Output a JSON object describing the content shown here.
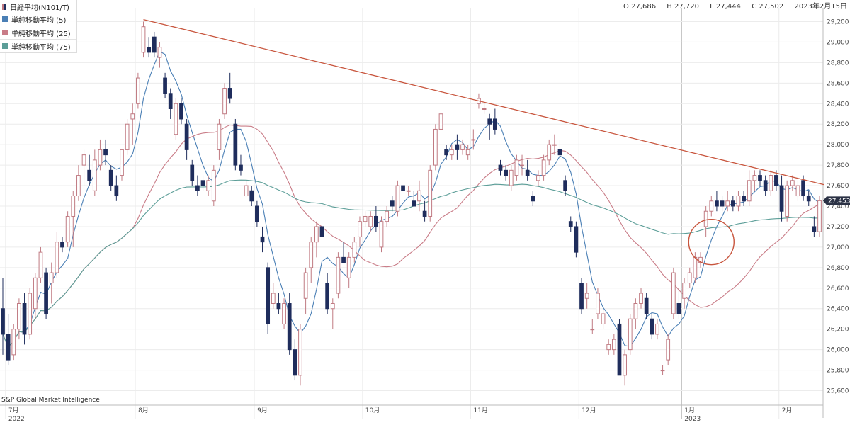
{
  "header": {
    "symbol": "日経平均(N101/T)",
    "ohlc": {
      "open": "O 27,686",
      "high": "H 27,720",
      "low": "L 27,444",
      "close": "C 27,502"
    },
    "date": "2023年2月15日"
  },
  "legend": [
    {
      "label": "単純移動平均 (5)",
      "color": "#4a7fb5"
    },
    {
      "label": "単純移動平均 (25)",
      "color": "#c97c87"
    },
    {
      "label": "単純移動平均 (75)",
      "color": "#5c9e98"
    }
  ],
  "credit": "S&P Global Market Intelligence",
  "last_price_label": "27,453",
  "colors": {
    "up": "#c07a82",
    "down": "#1f2d5c",
    "trendline": "#c8553d",
    "circle": "#c8553d",
    "grid": "#ececec"
  },
  "chart_data": {
    "type": "candlestick",
    "ylim": [
      25500,
      29300
    ],
    "y_ticks": [
      "29,200",
      "29,000",
      "28,800",
      "28,600",
      "28,400",
      "28,200",
      "28,000",
      "27,800",
      "27,600",
      "27,400",
      "27,200",
      "27,000",
      "26,800",
      "26,600",
      "26,400",
      "26,200",
      "26,000",
      "25,800",
      "25,600"
    ],
    "x_labels": [
      {
        "label": "7月",
        "sub": "2022"
      },
      {
        "label": "8月",
        "sub": ""
      },
      {
        "label": "9月",
        "sub": ""
      },
      {
        "label": "10月",
        "sub": ""
      },
      {
        "label": "11月",
        "sub": ""
      },
      {
        "label": "12月",
        "sub": ""
      },
      {
        "label": "1月",
        "sub": "2023"
      },
      {
        "label": "2月",
        "sub": ""
      }
    ],
    "candles": [
      [
        26400,
        26700,
        25950,
        26150
      ],
      [
        26150,
        26350,
        25850,
        25900
      ],
      [
        25950,
        26250,
        25900,
        26200
      ],
      [
        26200,
        26500,
        26100,
        26450
      ],
      [
        26450,
        26550,
        26050,
        26150
      ],
      [
        26150,
        26600,
        26100,
        26550
      ],
      [
        26400,
        26750,
        26300,
        26700
      ],
      [
        26700,
        27000,
        26650,
        26950
      ],
      [
        26750,
        26800,
        26300,
        26350
      ],
      [
        26650,
        26850,
        26450,
        26750
      ],
      [
        26750,
        27150,
        26700,
        27050
      ],
      [
        27050,
        27100,
        26950,
        27000
      ],
      [
        27050,
        27350,
        27000,
        27300
      ],
      [
        27300,
        27550,
        27000,
        27500
      ],
      [
        27500,
        27800,
        27450,
        27700
      ],
      [
        27800,
        27950,
        27600,
        27900
      ],
      [
        27750,
        27900,
        27600,
        27650
      ],
      [
        27550,
        27950,
        27500,
        27850
      ],
      [
        27800,
        28050,
        27750,
        27950
      ],
      [
        27950,
        28050,
        27800,
        27900
      ],
      [
        27750,
        27800,
        27550,
        27600
      ],
      [
        27600,
        27700,
        27450,
        27500
      ],
      [
        27700,
        27950,
        27650,
        27950
      ],
      [
        27950,
        28250,
        27900,
        28200
      ],
      [
        28250,
        28400,
        28000,
        28300
      ],
      [
        28400,
        28700,
        28350,
        28650
      ],
      [
        28900,
        29200,
        28850,
        29150
      ],
      [
        28950,
        29050,
        28850,
        28900
      ],
      [
        29050,
        29100,
        28850,
        28900
      ],
      [
        28850,
        29000,
        28750,
        28950
      ],
      [
        28650,
        28700,
        28450,
        28500
      ],
      [
        28500,
        28550,
        28250,
        28350
      ],
      [
        28100,
        28450,
        28050,
        28400
      ],
      [
        28400,
        28450,
        28200,
        28250
      ],
      [
        28200,
        28250,
        27850,
        27950
      ],
      [
        27800,
        27850,
        27600,
        27650
      ],
      [
        27600,
        27700,
        27500,
        27550
      ],
      [
        27650,
        27700,
        27550,
        27600
      ],
      [
        27550,
        27700,
        27500,
        27650
      ],
      [
        27450,
        27800,
        27400,
        27750
      ],
      [
        27950,
        28250,
        27850,
        28200
      ],
      [
        28300,
        28600,
        28250,
        28550
      ],
      [
        28550,
        28700,
        28400,
        28450
      ],
      [
        28200,
        28250,
        27750,
        27800
      ],
      [
        27800,
        27900,
        27700,
        27750
      ],
      [
        27500,
        27650,
        27500,
        27600
      ],
      [
        27550,
        27600,
        27400,
        27450
      ],
      [
        27400,
        27450,
        27200,
        27250
      ],
      [
        27100,
        27200,
        26950,
        27050
      ],
      [
        26800,
        26850,
        26150,
        26250
      ],
      [
        26450,
        26650,
        26400,
        26550
      ],
      [
        26450,
        26550,
        26350,
        26400
      ],
      [
        26250,
        26500,
        26200,
        26450
      ],
      [
        26450,
        26550,
        25950,
        26000
      ],
      [
        26000,
        26100,
        25700,
        25750
      ],
      [
        25750,
        26250,
        25650,
        26200
      ],
      [
        26500,
        26800,
        26350,
        26750
      ],
      [
        26800,
        27100,
        26650,
        27050
      ],
      [
        27050,
        27250,
        26900,
        27200
      ],
      [
        27200,
        27300,
        27050,
        27100
      ],
      [
        26650,
        26750,
        26350,
        26400
      ],
      [
        26400,
        26500,
        26200,
        26450
      ],
      [
        26550,
        26950,
        26500,
        26900
      ],
      [
        26900,
        27050,
        26850,
        26850
      ],
      [
        26700,
        26950,
        26600,
        26900
      ],
      [
        26900,
        27100,
        26850,
        27050
      ],
      [
        27100,
        27300,
        27000,
        27250
      ],
      [
        27250,
        27350,
        27200,
        27300
      ],
      [
        27200,
        27350,
        27150,
        27300
      ],
      [
        27300,
        27400,
        27150,
        27200
      ],
      [
        27000,
        27300,
        26950,
        27250
      ],
      [
        27250,
        27400,
        27200,
        27350
      ],
      [
        27450,
        27500,
        27350,
        27400
      ],
      [
        27350,
        27650,
        27300,
        27600
      ],
      [
        27600,
        27600,
        27550,
        27550
      ],
      [
        27550,
        27600,
        27500,
        27550
      ],
      [
        27450,
        27550,
        27400,
        27400
      ],
      [
        27450,
        27650,
        27350,
        27550
      ],
      [
        27350,
        27450,
        27250,
        27300
      ],
      [
        27300,
        27800,
        27250,
        27750
      ],
      [
        27800,
        28200,
        27750,
        28150
      ],
      [
        28150,
        28350,
        28050,
        28300
      ],
      [
        27950,
        28000,
        27850,
        27900
      ],
      [
        27900,
        28000,
        27850,
        27950
      ],
      [
        28000,
        28100,
        27850,
        27950
      ],
      [
        27950,
        28050,
        27900,
        28000
      ],
      [
        27900,
        28000,
        27850,
        27950
      ],
      [
        28050,
        28150,
        27950,
        28050
      ],
      [
        28400,
        28500,
        28350,
        28450
      ],
      [
        28350,
        28400,
        28300,
        28350
      ],
      [
        28250,
        28300,
        28050,
        28200
      ],
      [
        28250,
        28350,
        28100,
        28150
      ],
      [
        27800,
        27850,
        27700,
        27750
      ],
      [
        27750,
        27800,
        27650,
        27700
      ],
      [
        27600,
        27800,
        27550,
        27750
      ],
      [
        27700,
        27900,
        27650,
        27850
      ],
      [
        27800,
        27900,
        27700,
        27800
      ],
      [
        27750,
        27850,
        27650,
        27700
      ],
      [
        27500,
        27550,
        27400,
        27450
      ],
      [
        27650,
        27750,
        27600,
        27700
      ],
      [
        27700,
        27900,
        27650,
        27850
      ],
      [
        27850,
        28050,
        27800,
        28000
      ],
      [
        28000,
        28100,
        27900,
        28000
      ],
      [
        27950,
        28050,
        27850,
        27900
      ],
      [
        27650,
        27700,
        27500,
        27550
      ],
      [
        27250,
        27300,
        27150,
        27200
      ],
      [
        27200,
        27250,
        26900,
        26950
      ],
      [
        26650,
        26700,
        26350,
        26400
      ],
      [
        26500,
        26650,
        26400,
        26550
      ],
      [
        26200,
        26300,
        26150,
        26200
      ],
      [
        26350,
        26600,
        26300,
        26550
      ],
      [
        26250,
        26400,
        26200,
        26350
      ],
      [
        26000,
        26100,
        25950,
        26050
      ],
      [
        26000,
        26150,
        25950,
        26100
      ],
      [
        26250,
        26300,
        25750,
        25750
      ],
      [
        25750,
        26000,
        25650,
        25950
      ],
      [
        26000,
        26350,
        25950,
        26300
      ],
      [
        26300,
        26500,
        26200,
        26450
      ],
      [
        26450,
        26600,
        26400,
        26550
      ],
      [
        26500,
        26550,
        26300,
        26350
      ],
      [
        26300,
        26350,
        26100,
        26150
      ],
      [
        26150,
        26300,
        26100,
        26250
      ],
      [
        25800,
        25850,
        25750,
        25800
      ],
      [
        25900,
        26150,
        25850,
        26100
      ],
      [
        26350,
        26800,
        26300,
        26750
      ],
      [
        26450,
        26600,
        26300,
        26350
      ],
      [
        26500,
        26700,
        26400,
        26650
      ],
      [
        26650,
        26800,
        26600,
        26750
      ],
      [
        26700,
        26950,
        26650,
        26900
      ],
      [
        26850,
        26950,
        26800,
        26900
      ],
      [
        27200,
        27400,
        27100,
        27350
      ],
      [
        27350,
        27500,
        27300,
        27450
      ],
      [
        27450,
        27550,
        27350,
        27400
      ],
      [
        27450,
        27500,
        27350,
        27400
      ],
      [
        27400,
        27550,
        27350,
        27450
      ],
      [
        27450,
        27500,
        27350,
        27400
      ],
      [
        27400,
        27550,
        27350,
        27500
      ],
      [
        27500,
        27550,
        27400,
        27450
      ],
      [
        27450,
        27750,
        27400,
        27650
      ],
      [
        27650,
        27750,
        27550,
        27700
      ],
      [
        27700,
        27750,
        27600,
        27650
      ],
      [
        27650,
        27700,
        27500,
        27550
      ],
      [
        27550,
        27750,
        27500,
        27700
      ],
      [
        27700,
        27750,
        27550,
        27600
      ],
      [
        27600,
        27700,
        27250,
        27350
      ],
      [
        27300,
        27650,
        27250,
        27600
      ],
      [
        27600,
        27700,
        27550,
        27650
      ],
      [
        27500,
        27650,
        27450,
        27600
      ],
      [
        27650,
        27700,
        27450,
        27500
      ],
      [
        27500,
        27550,
        27400,
        27450
      ],
      [
        27200,
        27300,
        27100,
        27150
      ],
      [
        27150,
        27500,
        27100,
        27453
      ]
    ]
  }
}
